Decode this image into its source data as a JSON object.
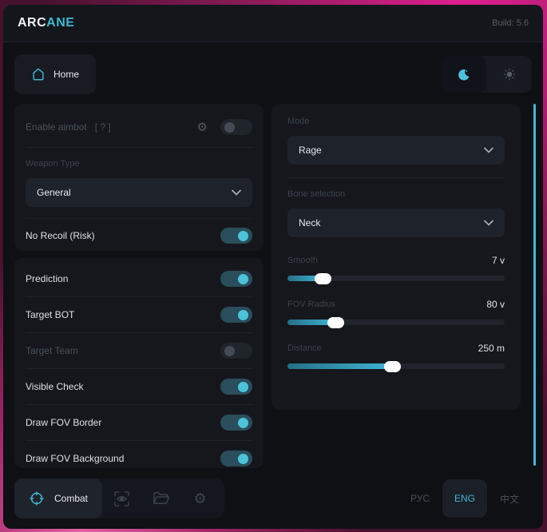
{
  "titlebar": {
    "brand_prefix": "ARC",
    "brand_accent": "ANE",
    "build": "Build: 5.6"
  },
  "nav": {
    "home_label": "Home"
  },
  "icons": {
    "gear_glyph": "⚙"
  },
  "left_panel": {
    "enable_row": {
      "label": "Enable aimbot",
      "hint": "[ ? ]",
      "enabled": false
    },
    "weapon_type": {
      "label": "Weapon Type",
      "value": "General"
    },
    "no_recoil": {
      "label": "No Recoil (Risk)",
      "on": true
    },
    "toggles": [
      {
        "label": "Prediction",
        "on": true,
        "dim": false
      },
      {
        "label": "Target BOT",
        "on": true,
        "dim": false
      },
      {
        "label": "Target Team",
        "on": false,
        "dim": true
      },
      {
        "label": "Visible Check",
        "on": true,
        "dim": false
      },
      {
        "label": "Draw FOV Border",
        "on": true,
        "dim": false
      },
      {
        "label": "Draw FOV Background",
        "on": true,
        "dim": false
      }
    ]
  },
  "right_panel": {
    "mode": {
      "label": "Mode",
      "value": "Rage"
    },
    "bone": {
      "label": "Bone selection",
      "value": "Neck"
    },
    "sliders": [
      {
        "label": "Smooth",
        "value": "7 v",
        "fill_pct": 16
      },
      {
        "label": "FOV Radius",
        "value": "80 v",
        "fill_pct": 22
      },
      {
        "label": "Distance",
        "value": "250 m",
        "fill_pct": 48
      }
    ]
  },
  "footer": {
    "combat_label": "Combat",
    "languages": [
      {
        "label": "РУС",
        "active": false
      },
      {
        "label": "ENG",
        "active": true
      },
      {
        "label": "中文",
        "active": false
      }
    ]
  },
  "colors": {
    "accent": "#3db8d2",
    "toggle_on_knob": "#4cc3da",
    "scrollbar": "#45b7d6"
  }
}
